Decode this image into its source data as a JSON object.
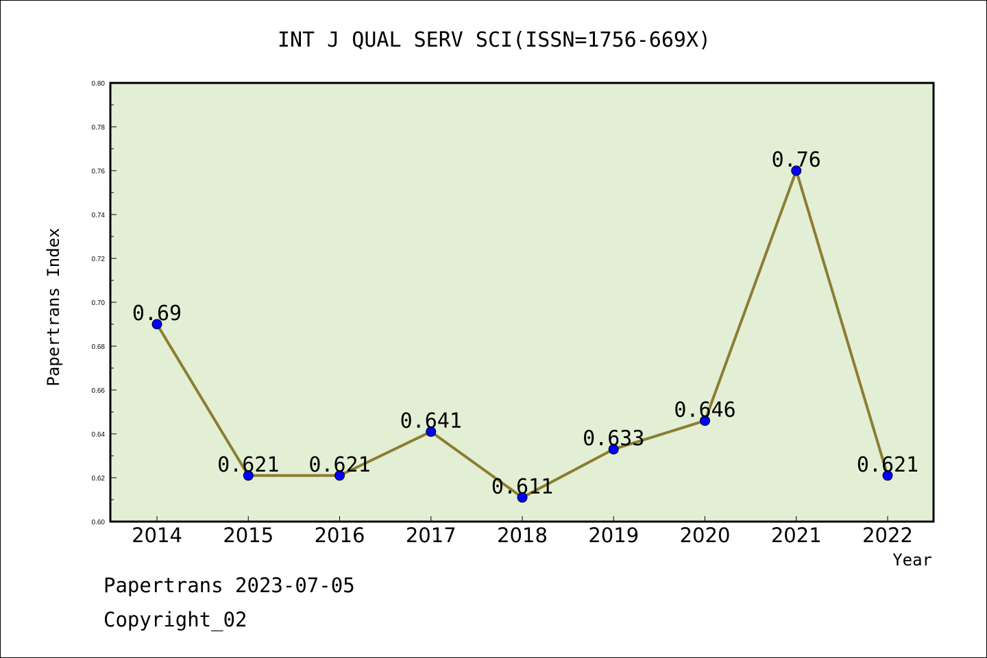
{
  "chart_data": {
    "type": "line",
    "title": "INT J QUAL SERV SCI(ISSN=1756-669X)",
    "xlabel": "Year",
    "ylabel": "Papertrans Index",
    "categories": [
      "2014",
      "2015",
      "2016",
      "2017",
      "2018",
      "2019",
      "2020",
      "2021",
      "2022"
    ],
    "series": [
      {
        "values": [
          0.69,
          0.621,
          0.621,
          0.641,
          0.611,
          0.633,
          0.646,
          0.76,
          0.621
        ],
        "labels": [
          "0.69",
          "0.621",
          "0.621",
          "0.641",
          "0.611",
          "0.633",
          "0.646",
          "0.76",
          "0.621"
        ]
      }
    ],
    "ylim": [
      0.6,
      0.8
    ],
    "yticks": [
      "0.60",
      "0.62",
      "0.64",
      "0.66",
      "0.68",
      "0.70",
      "0.72",
      "0.74",
      "0.76",
      "0.78",
      "0.80"
    ],
    "grid": false,
    "legend": "none",
    "colors": {
      "plot_background": "#e2efd4",
      "line": "#8c7d32",
      "marker": "#0000ff"
    }
  },
  "footer": {
    "line1": "Papertrans 2023-07-05",
    "line2": "Copyright_02"
  }
}
